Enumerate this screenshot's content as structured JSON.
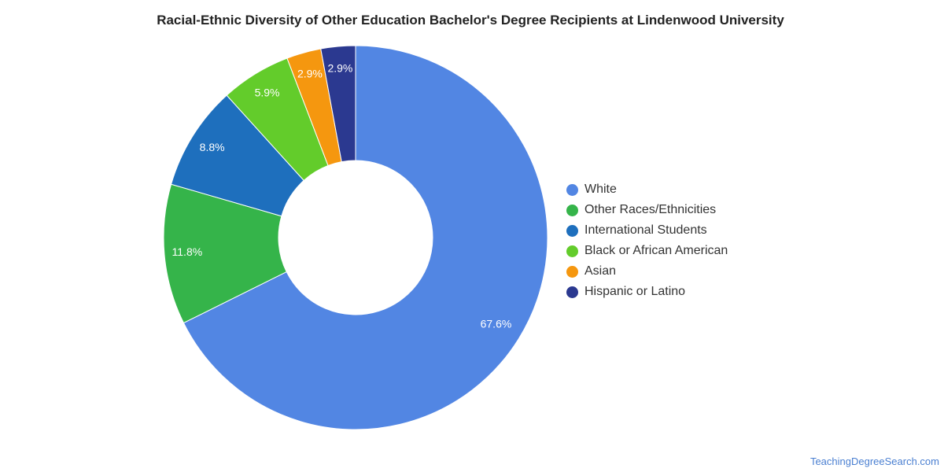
{
  "chart_data": {
    "type": "pie",
    "donut": true,
    "title": "Racial-Ethnic Diversity of Other Education Bachelor's Degree Recipients at Lindenwood University",
    "slices": [
      {
        "label": "White",
        "value": 67.6,
        "display": "67.6%",
        "color": "#5286e3"
      },
      {
        "label": "Other Races/Ethnicities",
        "value": 11.8,
        "display": "11.8%",
        "color": "#35b44a"
      },
      {
        "label": "International Students",
        "value": 8.8,
        "display": "8.8%",
        "color": "#1e6fbd"
      },
      {
        "label": "Black or African American",
        "value": 5.9,
        "display": "5.9%",
        "color": "#63cc2b"
      },
      {
        "label": "Asian",
        "value": 2.9,
        "display": "2.9%",
        "color": "#f5970f"
      },
      {
        "label": "Hispanic or Latino",
        "value": 2.9,
        "display": "2.9%",
        "color": "#2b3990"
      }
    ],
    "legend_position": "right"
  },
  "watermark": "TeachingDegreeSearch.com"
}
